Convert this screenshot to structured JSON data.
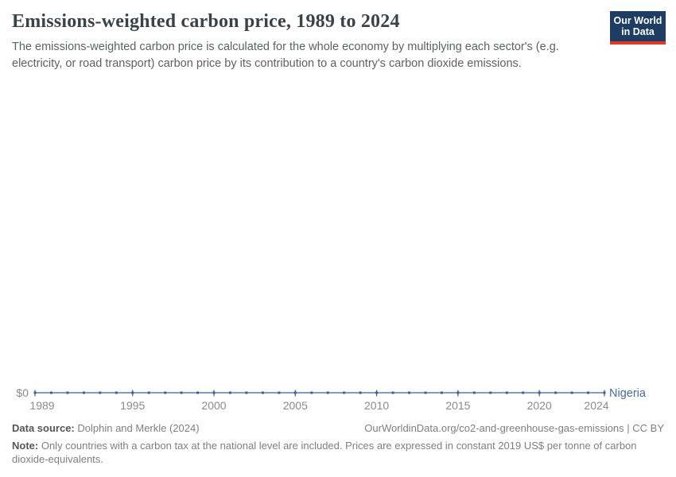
{
  "header": {
    "title": "Emissions-weighted carbon price, 1989 to 2024",
    "subtitle": "The emissions-weighted carbon price is calculated for the whole economy by multiplying each sector's (e.g. electricity, or road transport) carbon price by its contribution to a country's carbon dioxide emissions."
  },
  "logo": {
    "line1": "Our World",
    "line2": "in Data",
    "bg_color": "#1d3d63",
    "bar_color": "#dc3a2b"
  },
  "chart_data": {
    "type": "line",
    "title": "Emissions-weighted carbon price, 1989 to 2024",
    "xlabel": "",
    "ylabel": "",
    "xlim": [
      1989,
      2024
    ],
    "ylim": [
      0,
      0
    ],
    "grid": false,
    "legend_position": "end-of-line",
    "x": [
      1989,
      1990,
      1991,
      1992,
      1993,
      1994,
      1995,
      1996,
      1997,
      1998,
      1999,
      2000,
      2001,
      2002,
      2003,
      2004,
      2005,
      2006,
      2007,
      2008,
      2009,
      2010,
      2011,
      2012,
      2013,
      2014,
      2015,
      2016,
      2017,
      2018,
      2019,
      2020,
      2021,
      2022,
      2023,
      2024
    ],
    "series": [
      {
        "name": "Nigeria",
        "values": [
          0,
          0,
          0,
          0,
          0,
          0,
          0,
          0,
          0,
          0,
          0,
          0,
          0,
          0,
          0,
          0,
          0,
          0,
          0,
          0,
          0,
          0,
          0,
          0,
          0,
          0,
          0,
          0,
          0,
          0,
          0,
          0,
          0,
          0,
          0,
          0
        ],
        "color": "#5b7cad",
        "marker_color": "#3f5f99",
        "label_color": "#4c6a9c"
      }
    ],
    "x_ticks": [
      1989,
      1995,
      2000,
      2005,
      2010,
      2015,
      2020,
      2024
    ],
    "y_tick_label": "$0"
  },
  "footer": {
    "data_source_label": "Data source:",
    "data_source_value": "Dolphin and Merkle (2024)",
    "attribution": "OurWorldinData.org/co2-and-greenhouse-gas-emissions | CC BY",
    "note_label": "Note:",
    "note_text": "Only countries with a carbon tax at the national level are included. Prices are expressed in constant 2019 US$ per tonne of carbon dioxide-equivalents."
  }
}
